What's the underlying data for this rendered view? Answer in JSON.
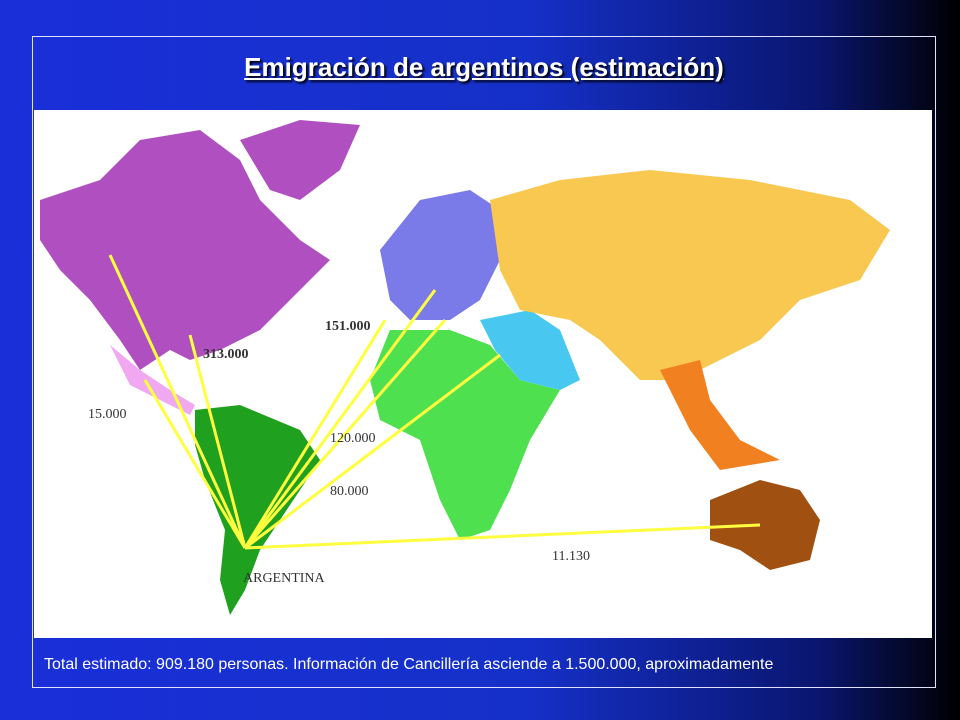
{
  "title": "Emigración de argentinos (estimación)",
  "map": {
    "origin": "ARGENTINA",
    "flows": [
      {
        "label": "15.000"
      },
      {
        "label": "313.000"
      },
      {
        "label": "151.000"
      },
      {
        "label": "120.000"
      },
      {
        "label": "80.000"
      },
      {
        "label": "11.130"
      }
    ]
  },
  "footer": "Total estimado: 909.180 personas. Información de Cancillería asciende a 1.500.000, aproximadamente"
}
